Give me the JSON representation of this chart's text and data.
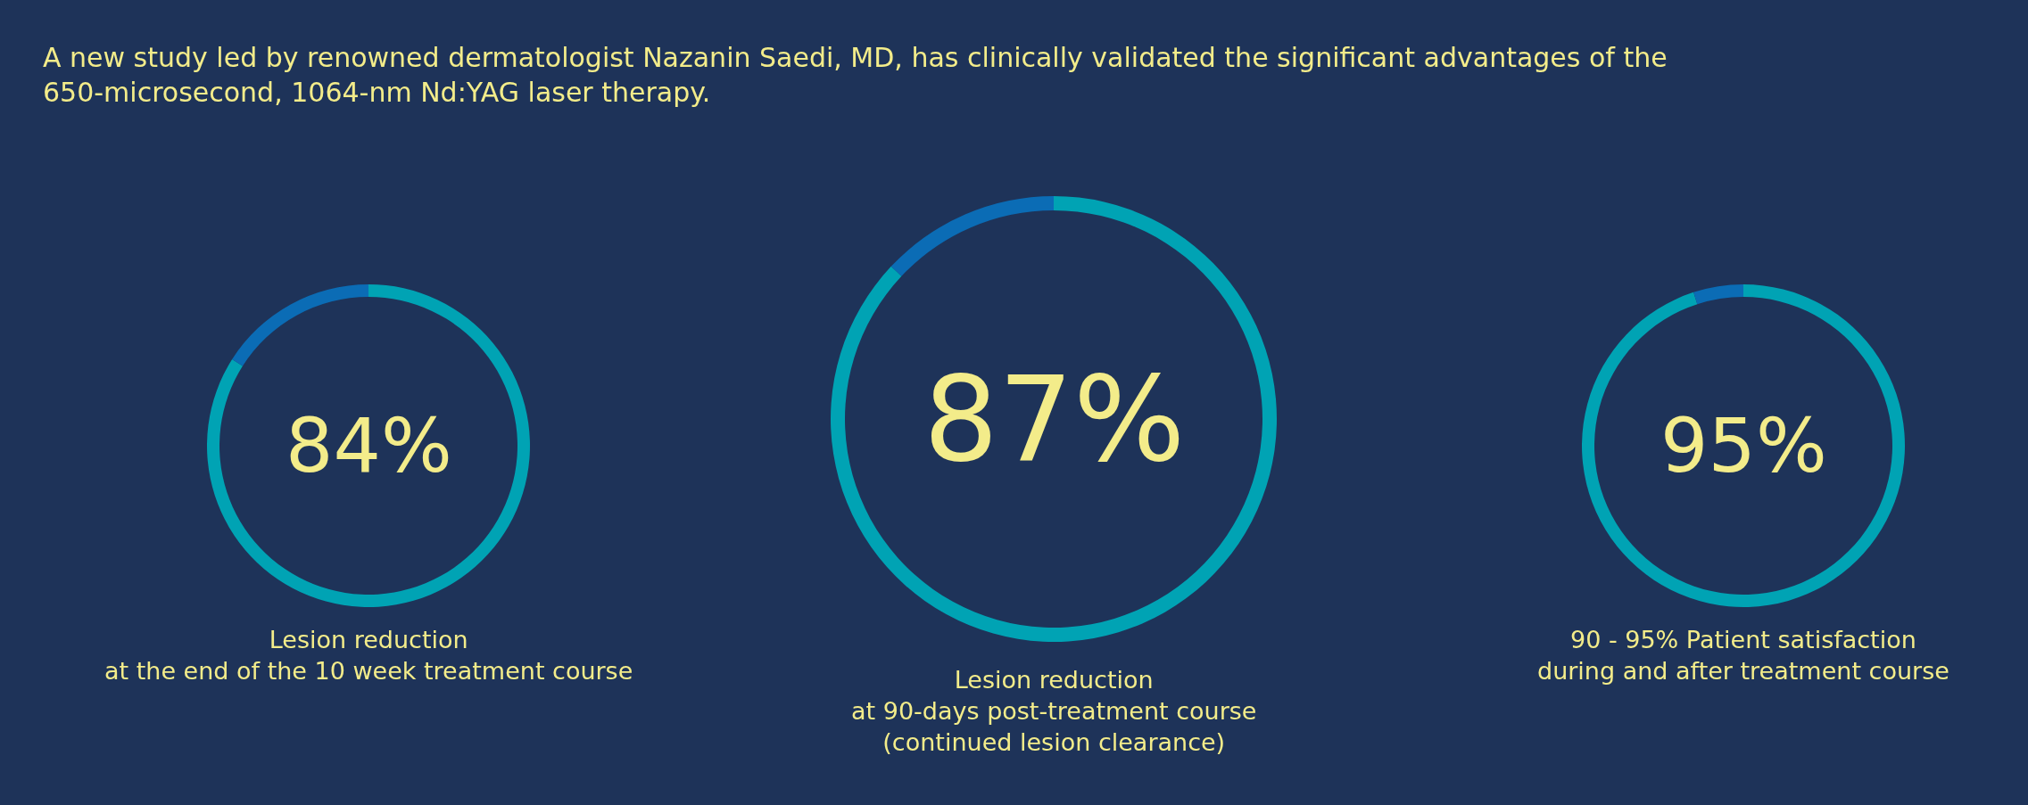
{
  "chart_data": [
    {
      "type": "donut",
      "title": "A new study led by renowned dermatologist Nazanin Saedi, MD, has clinically validated the significant advantages of the\n650-microsecond, 1064-nm Nd:YAG laser therapy.",
      "categories": [
        null,
        null
      ],
      "values": [
        84,
        16
      ],
      "colors": [
        "#00a3b4",
        "#0b6cb5"
      ],
      "annotations": [
        "84%",
        "Lesion reduction\nat the end of the 10 week treatment course"
      ]
    },
    {
      "type": "donut",
      "categories": [
        null,
        null
      ],
      "values": [
        87,
        13
      ],
      "colors": [
        "#00a3b4",
        "#0b6cb5"
      ],
      "annotations": [
        "87%",
        "Lesion reduction\nat 90-days post-treatment course\n(continued lesion clearance)"
      ]
    },
    {
      "type": "donut",
      "categories": [
        null,
        null
      ],
      "values": [
        95,
        5
      ],
      "colors": [
        "#00a3b4",
        "#0b6cb5"
      ],
      "annotations": [
        "95%",
        "90 - 95% Patient satisfaction\nduring and after treatment course"
      ]
    }
  ]
}
